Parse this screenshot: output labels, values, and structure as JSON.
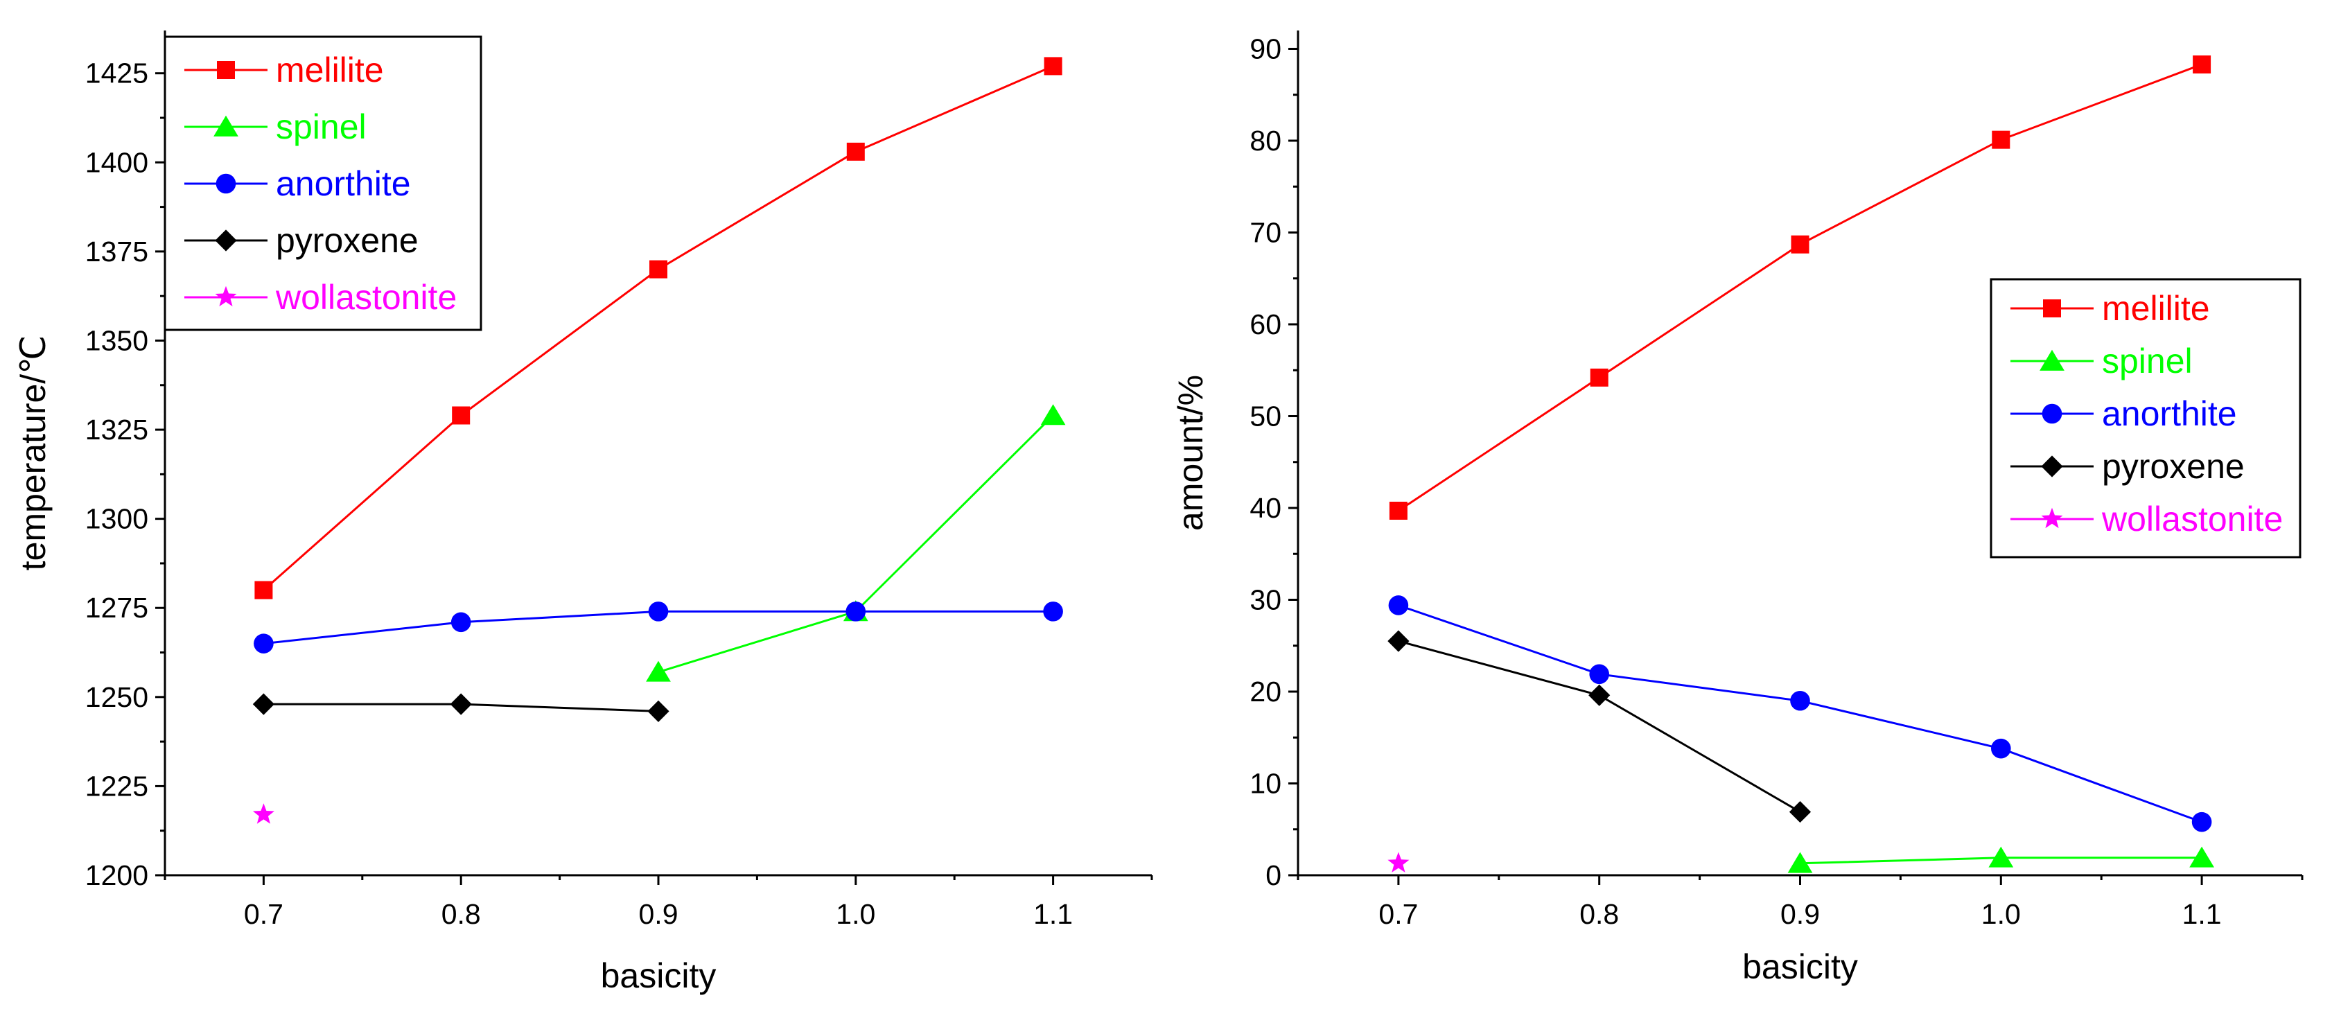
{
  "chart_data": [
    {
      "type": "line",
      "xlabel": "basicity",
      "ylabel": "temperature/℃",
      "xlim": [
        0.65,
        1.15
      ],
      "ylim": [
        1200,
        1437
      ],
      "xticks": [
        "0.7",
        "0.8",
        "0.9",
        "1.0",
        "1.1"
      ],
      "yticks": [
        "1200",
        "1225",
        "1250",
        "1275",
        "1300",
        "1325",
        "1350",
        "1375",
        "1400",
        "1425"
      ],
      "legend_position": "top-left",
      "series": [
        {
          "name": "melilite",
          "color": "#ff0000",
          "marker": "square",
          "x": [
            0.7,
            0.8,
            0.9,
            1.0,
            1.1
          ],
          "values": [
            1280,
            1329,
            1370,
            1403,
            1427
          ]
        },
        {
          "name": "spinel",
          "color": "#00ff00",
          "marker": "triangle",
          "x": [
            0.9,
            1.0,
            1.1
          ],
          "values": [
            1257,
            1274,
            1329
          ]
        },
        {
          "name": "anorthite",
          "color": "#0000ff",
          "marker": "circle",
          "x": [
            0.7,
            0.8,
            0.9,
            1.0,
            1.1
          ],
          "values": [
            1265,
            1271,
            1274,
            1274,
            1274
          ]
        },
        {
          "name": "pyroxene",
          "color": "#000000",
          "marker": "diamond",
          "x": [
            0.7,
            0.8,
            0.9
          ],
          "values": [
            1248,
            1248,
            1246
          ]
        },
        {
          "name": "wollastonite",
          "color": "#ff00ff",
          "marker": "star",
          "x": [
            0.7
          ],
          "values": [
            1217
          ]
        }
      ]
    },
    {
      "type": "line",
      "xlabel": "basicity",
      "ylabel": "amount/%",
      "xlim": [
        0.65,
        1.15
      ],
      "ylim": [
        0,
        92
      ],
      "xticks": [
        "0.7",
        "0.8",
        "0.9",
        "1.0",
        "1.1"
      ],
      "yticks": [
        "0",
        "10",
        "20",
        "30",
        "40",
        "50",
        "60",
        "70",
        "80",
        "90"
      ],
      "legend_position": "right",
      "series": [
        {
          "name": "melilite",
          "color": "#ff0000",
          "marker": "square",
          "x": [
            0.7,
            0.8,
            0.9,
            1.0,
            1.1
          ],
          "values": [
            39.7,
            54.2,
            68.7,
            80.1,
            88.3
          ]
        },
        {
          "name": "spinel",
          "color": "#00ff00",
          "marker": "triangle",
          "x": [
            0.9,
            1.0,
            1.1
          ],
          "values": [
            1.3,
            1.9,
            1.9
          ]
        },
        {
          "name": "anorthite",
          "color": "#0000ff",
          "marker": "circle",
          "x": [
            0.7,
            0.8,
            0.9,
            1.0,
            1.1
          ],
          "values": [
            29.4,
            21.9,
            19.0,
            13.8,
            5.8
          ]
        },
        {
          "name": "pyroxene",
          "color": "#000000",
          "marker": "diamond",
          "x": [
            0.7,
            0.8,
            0.9
          ],
          "values": [
            25.5,
            19.6,
            6.9
          ]
        },
        {
          "name": "wollastonite",
          "color": "#ff00ff",
          "marker": "star",
          "x": [
            0.7
          ],
          "values": [
            1.3
          ]
        }
      ]
    }
  ]
}
